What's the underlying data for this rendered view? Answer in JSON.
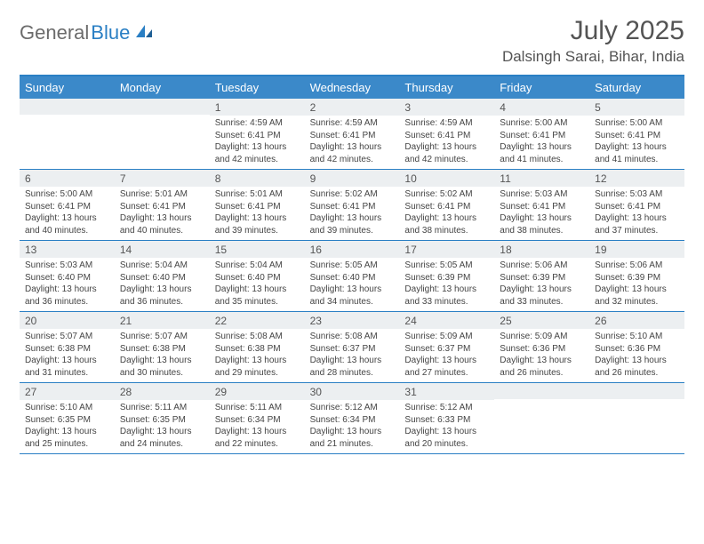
{
  "logo": {
    "part1": "General",
    "part2": "Blue"
  },
  "title": "July 2025",
  "location": "Dalsingh Sarai, Bihar, India",
  "colors": {
    "header_bg": "#3b89c9",
    "border": "#2a7fc4",
    "daynum_bg": "#eceff1",
    "text": "#444444",
    "title_text": "#545454"
  },
  "day_names": [
    "Sunday",
    "Monday",
    "Tuesday",
    "Wednesday",
    "Thursday",
    "Friday",
    "Saturday"
  ],
  "weeks": [
    [
      {
        "empty": true
      },
      {
        "empty": true
      },
      {
        "day": "1",
        "sunrise": "Sunrise: 4:59 AM",
        "sunset": "Sunset: 6:41 PM",
        "daylight": "Daylight: 13 hours and 42 minutes."
      },
      {
        "day": "2",
        "sunrise": "Sunrise: 4:59 AM",
        "sunset": "Sunset: 6:41 PM",
        "daylight": "Daylight: 13 hours and 42 minutes."
      },
      {
        "day": "3",
        "sunrise": "Sunrise: 4:59 AM",
        "sunset": "Sunset: 6:41 PM",
        "daylight": "Daylight: 13 hours and 42 minutes."
      },
      {
        "day": "4",
        "sunrise": "Sunrise: 5:00 AM",
        "sunset": "Sunset: 6:41 PM",
        "daylight": "Daylight: 13 hours and 41 minutes."
      },
      {
        "day": "5",
        "sunrise": "Sunrise: 5:00 AM",
        "sunset": "Sunset: 6:41 PM",
        "daylight": "Daylight: 13 hours and 41 minutes."
      }
    ],
    [
      {
        "day": "6",
        "sunrise": "Sunrise: 5:00 AM",
        "sunset": "Sunset: 6:41 PM",
        "daylight": "Daylight: 13 hours and 40 minutes."
      },
      {
        "day": "7",
        "sunrise": "Sunrise: 5:01 AM",
        "sunset": "Sunset: 6:41 PM",
        "daylight": "Daylight: 13 hours and 40 minutes."
      },
      {
        "day": "8",
        "sunrise": "Sunrise: 5:01 AM",
        "sunset": "Sunset: 6:41 PM",
        "daylight": "Daylight: 13 hours and 39 minutes."
      },
      {
        "day": "9",
        "sunrise": "Sunrise: 5:02 AM",
        "sunset": "Sunset: 6:41 PM",
        "daylight": "Daylight: 13 hours and 39 minutes."
      },
      {
        "day": "10",
        "sunrise": "Sunrise: 5:02 AM",
        "sunset": "Sunset: 6:41 PM",
        "daylight": "Daylight: 13 hours and 38 minutes."
      },
      {
        "day": "11",
        "sunrise": "Sunrise: 5:03 AM",
        "sunset": "Sunset: 6:41 PM",
        "daylight": "Daylight: 13 hours and 38 minutes."
      },
      {
        "day": "12",
        "sunrise": "Sunrise: 5:03 AM",
        "sunset": "Sunset: 6:41 PM",
        "daylight": "Daylight: 13 hours and 37 minutes."
      }
    ],
    [
      {
        "day": "13",
        "sunrise": "Sunrise: 5:03 AM",
        "sunset": "Sunset: 6:40 PM",
        "daylight": "Daylight: 13 hours and 36 minutes."
      },
      {
        "day": "14",
        "sunrise": "Sunrise: 5:04 AM",
        "sunset": "Sunset: 6:40 PM",
        "daylight": "Daylight: 13 hours and 36 minutes."
      },
      {
        "day": "15",
        "sunrise": "Sunrise: 5:04 AM",
        "sunset": "Sunset: 6:40 PM",
        "daylight": "Daylight: 13 hours and 35 minutes."
      },
      {
        "day": "16",
        "sunrise": "Sunrise: 5:05 AM",
        "sunset": "Sunset: 6:40 PM",
        "daylight": "Daylight: 13 hours and 34 minutes."
      },
      {
        "day": "17",
        "sunrise": "Sunrise: 5:05 AM",
        "sunset": "Sunset: 6:39 PM",
        "daylight": "Daylight: 13 hours and 33 minutes."
      },
      {
        "day": "18",
        "sunrise": "Sunrise: 5:06 AM",
        "sunset": "Sunset: 6:39 PM",
        "daylight": "Daylight: 13 hours and 33 minutes."
      },
      {
        "day": "19",
        "sunrise": "Sunrise: 5:06 AM",
        "sunset": "Sunset: 6:39 PM",
        "daylight": "Daylight: 13 hours and 32 minutes."
      }
    ],
    [
      {
        "day": "20",
        "sunrise": "Sunrise: 5:07 AM",
        "sunset": "Sunset: 6:38 PM",
        "daylight": "Daylight: 13 hours and 31 minutes."
      },
      {
        "day": "21",
        "sunrise": "Sunrise: 5:07 AM",
        "sunset": "Sunset: 6:38 PM",
        "daylight": "Daylight: 13 hours and 30 minutes."
      },
      {
        "day": "22",
        "sunrise": "Sunrise: 5:08 AM",
        "sunset": "Sunset: 6:38 PM",
        "daylight": "Daylight: 13 hours and 29 minutes."
      },
      {
        "day": "23",
        "sunrise": "Sunrise: 5:08 AM",
        "sunset": "Sunset: 6:37 PM",
        "daylight": "Daylight: 13 hours and 28 minutes."
      },
      {
        "day": "24",
        "sunrise": "Sunrise: 5:09 AM",
        "sunset": "Sunset: 6:37 PM",
        "daylight": "Daylight: 13 hours and 27 minutes."
      },
      {
        "day": "25",
        "sunrise": "Sunrise: 5:09 AM",
        "sunset": "Sunset: 6:36 PM",
        "daylight": "Daylight: 13 hours and 26 minutes."
      },
      {
        "day": "26",
        "sunrise": "Sunrise: 5:10 AM",
        "sunset": "Sunset: 6:36 PM",
        "daylight": "Daylight: 13 hours and 26 minutes."
      }
    ],
    [
      {
        "day": "27",
        "sunrise": "Sunrise: 5:10 AM",
        "sunset": "Sunset: 6:35 PM",
        "daylight": "Daylight: 13 hours and 25 minutes."
      },
      {
        "day": "28",
        "sunrise": "Sunrise: 5:11 AM",
        "sunset": "Sunset: 6:35 PM",
        "daylight": "Daylight: 13 hours and 24 minutes."
      },
      {
        "day": "29",
        "sunrise": "Sunrise: 5:11 AM",
        "sunset": "Sunset: 6:34 PM",
        "daylight": "Daylight: 13 hours and 22 minutes."
      },
      {
        "day": "30",
        "sunrise": "Sunrise: 5:12 AM",
        "sunset": "Sunset: 6:34 PM",
        "daylight": "Daylight: 13 hours and 21 minutes."
      },
      {
        "day": "31",
        "sunrise": "Sunrise: 5:12 AM",
        "sunset": "Sunset: 6:33 PM",
        "daylight": "Daylight: 13 hours and 20 minutes."
      },
      {
        "empty": true
      },
      {
        "empty": true
      }
    ]
  ]
}
